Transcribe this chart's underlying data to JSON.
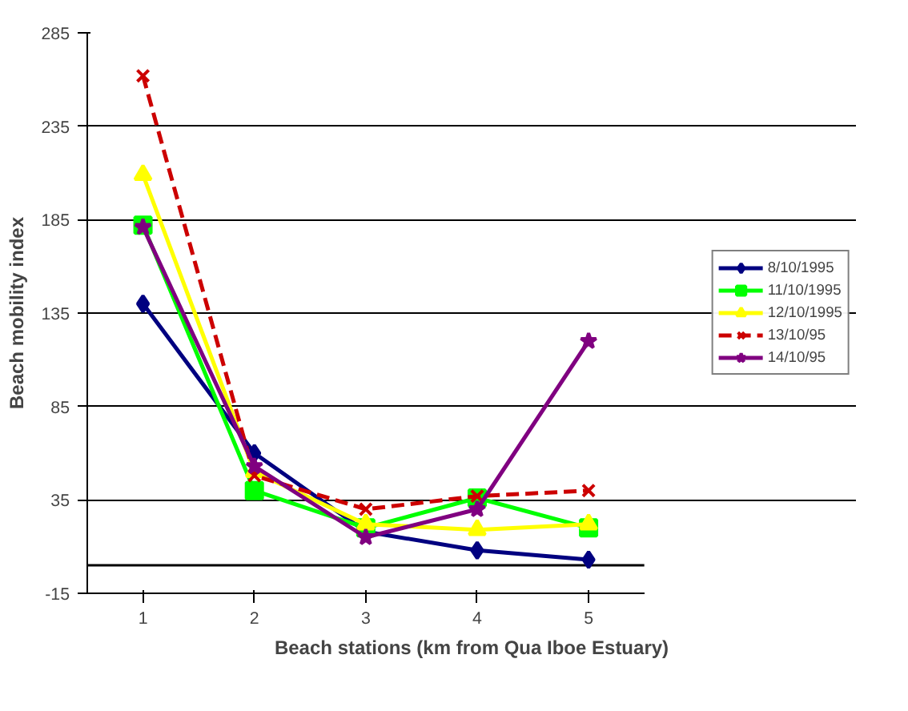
{
  "chart_data": {
    "type": "line",
    "xlabel": "Beach stations (km from Qua Iboe Estuary)",
    "ylabel": "Beach mobility index",
    "categories": [
      "1",
      "2",
      "3",
      "4",
      "5"
    ],
    "series": [
      {
        "name": "8/10/1995",
        "color": "#000080",
        "marker": "diamond",
        "values": [
          140,
          60,
          18,
          8,
          3
        ]
      },
      {
        "name": "11/10/1995",
        "color": "#00ff00",
        "marker": "square",
        "values": [
          182,
          40,
          20,
          36,
          20
        ]
      },
      {
        "name": "12/10/1995",
        "color": "#ffff00",
        "marker": "triangle",
        "values": [
          209,
          50,
          22,
          19,
          22
        ]
      },
      {
        "name": "13/10/95",
        "color": "#cc0000",
        "marker": "cross",
        "line_style": "dashed",
        "values": [
          262,
          48,
          30,
          37,
          40
        ]
      },
      {
        "name": "14/10/95",
        "color": "#800080",
        "marker": "star",
        "values": [
          181,
          53,
          15,
          30,
          120
        ]
      }
    ],
    "ylim": [
      -15,
      285
    ],
    "yticks": [
      -15,
      35,
      85,
      135,
      185,
      235,
      285
    ],
    "grid": "y",
    "legend": "right",
    "ref_lines": [
      {
        "axis": "y",
        "value": 0,
        "label": null,
        "color": "#000000"
      }
    ]
  }
}
